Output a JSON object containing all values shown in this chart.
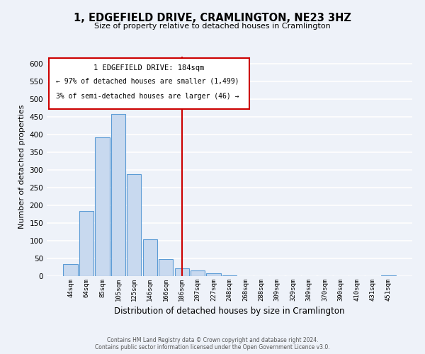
{
  "title": "1, EDGEFIELD DRIVE, CRAMLINGTON, NE23 3HZ",
  "subtitle": "Size of property relative to detached houses in Cramlington",
  "xlabel": "Distribution of detached houses by size in Cramlington",
  "ylabel": "Number of detached properties",
  "bar_labels": [
    "44sqm",
    "64sqm",
    "85sqm",
    "105sqm",
    "125sqm",
    "146sqm",
    "166sqm",
    "186sqm",
    "207sqm",
    "227sqm",
    "248sqm",
    "268sqm",
    "288sqm",
    "309sqm",
    "329sqm",
    "349sqm",
    "370sqm",
    "390sqm",
    "410sqm",
    "431sqm",
    "451sqm"
  ],
  "bar_heights": [
    35,
    185,
    393,
    458,
    289,
    105,
    49,
    22,
    16,
    8,
    2,
    1,
    0,
    0,
    0,
    0,
    0,
    0,
    0,
    0,
    2
  ],
  "bar_color": "#c8d9ef",
  "bar_edge_color": "#5b9bd5",
  "highlight_index": 7,
  "highlight_line_color": "#cc0000",
  "annotation_box_edge": "#cc0000",
  "annotation_text_line1": "1 EDGEFIELD DRIVE: 184sqm",
  "annotation_text_line2": "← 97% of detached houses are smaller (1,499)",
  "annotation_text_line3": "3% of semi-detached houses are larger (46) →",
  "ylim": [
    0,
    620
  ],
  "yticks": [
    0,
    50,
    100,
    150,
    200,
    250,
    300,
    350,
    400,
    450,
    500,
    550,
    600
  ],
  "footer_line1": "Contains HM Land Registry data © Crown copyright and database right 2024.",
  "footer_line2": "Contains public sector information licensed under the Open Government Licence v3.0.",
  "background_color": "#eef2f9",
  "grid_color": "#ffffff",
  "title_fontsize": 10.5,
  "subtitle_fontsize": 8,
  "ylabel_fontsize": 8,
  "xlabel_fontsize": 8.5,
  "tick_fontsize": 7.5,
  "xtick_fontsize": 6.5
}
